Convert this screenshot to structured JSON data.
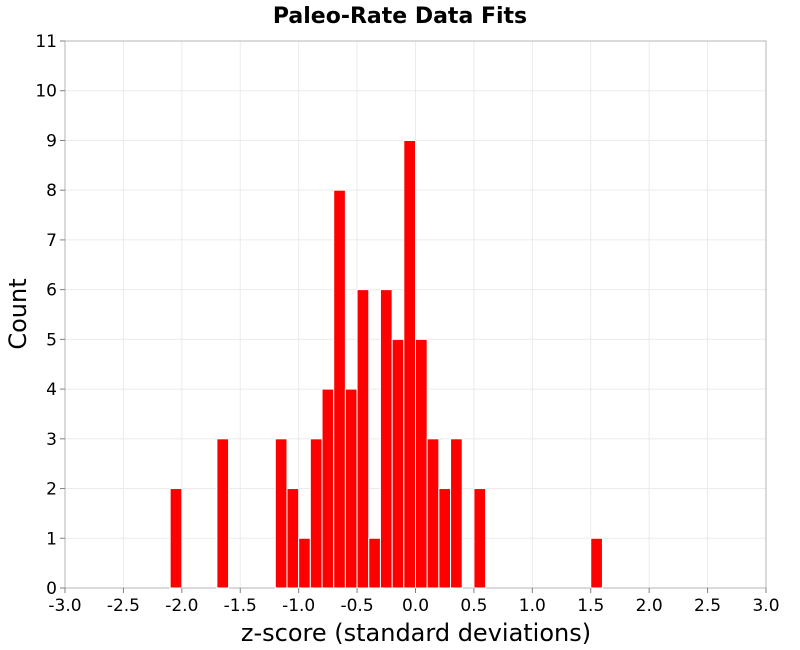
{
  "chart_data": {
    "type": "bar",
    "title": "Paleo-Rate Data Fits",
    "xlabel": "z-score (standard deviations)",
    "ylabel": "Count",
    "xlim": [
      -3.0,
      3.0
    ],
    "ylim": [
      0,
      11
    ],
    "bin_width": 0.1,
    "x_ticks": [
      "-3.0",
      "-2.5",
      "-2.0",
      "-1.5",
      "-1.0",
      "-0.5",
      "0.0",
      "0.5",
      "1.0",
      "1.5",
      "2.0",
      "2.5",
      "3.0"
    ],
    "y_ticks": [
      "0",
      "1",
      "2",
      "3",
      "4",
      "5",
      "6",
      "7",
      "8",
      "9",
      "10",
      "11"
    ],
    "grid": true,
    "bar_color": "#ff0000",
    "bins": [
      {
        "x": -2.05,
        "count": 2
      },
      {
        "x": -1.65,
        "count": 3
      },
      {
        "x": -1.15,
        "count": 3
      },
      {
        "x": -1.05,
        "count": 2
      },
      {
        "x": -0.95,
        "count": 1
      },
      {
        "x": -0.85,
        "count": 3
      },
      {
        "x": -0.75,
        "count": 4
      },
      {
        "x": -0.65,
        "count": 8
      },
      {
        "x": -0.55,
        "count": 4
      },
      {
        "x": -0.45,
        "count": 6
      },
      {
        "x": -0.35,
        "count": 1
      },
      {
        "x": -0.25,
        "count": 6
      },
      {
        "x": -0.15,
        "count": 5
      },
      {
        "x": -0.05,
        "count": 9
      },
      {
        "x": 0.05,
        "count": 5
      },
      {
        "x": 0.15,
        "count": 3
      },
      {
        "x": 0.25,
        "count": 2
      },
      {
        "x": 0.35,
        "count": 3
      },
      {
        "x": 0.55,
        "count": 2
      },
      {
        "x": 1.55,
        "count": 1
      }
    ]
  }
}
